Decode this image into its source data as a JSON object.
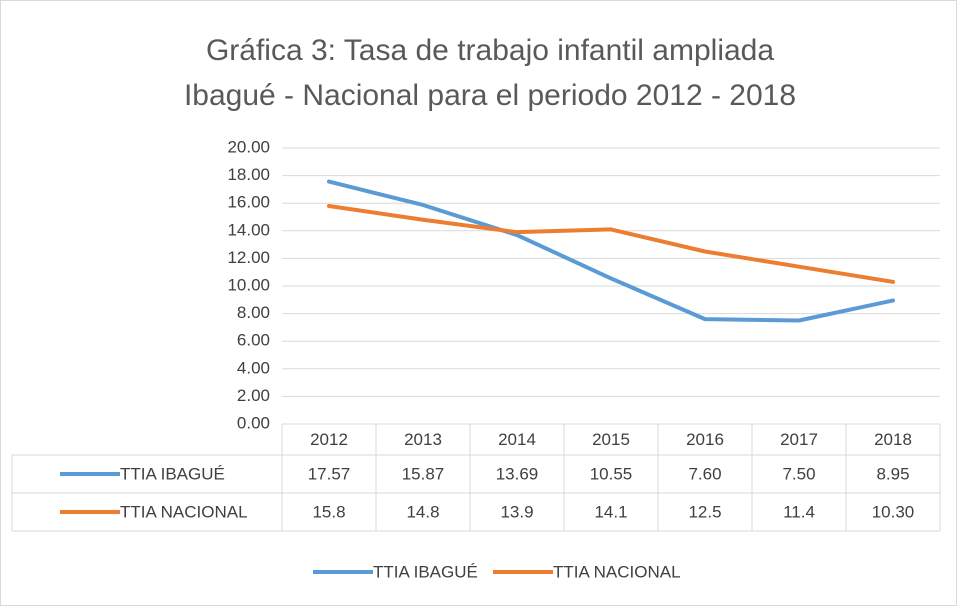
{
  "chart_data": {
    "type": "line",
    "title": [
      "Gráfica 3: Tasa de trabajo infantil ampliada",
      "Ibagué - Nacional para el periodo 2012 - 2018"
    ],
    "categories": [
      "2012",
      "2013",
      "2014",
      "2015",
      "2016",
      "2017",
      "2018"
    ],
    "series": [
      {
        "name": "TTIA IBAGUÉ",
        "color": "#5b9bd5",
        "values": [
          17.57,
          15.87,
          13.69,
          10.55,
          7.6,
          7.5,
          8.95
        ],
        "value_labels": [
          "17.57",
          "15.87",
          "13.69",
          "10.55",
          "7.60",
          "7.50",
          "8.95"
        ]
      },
      {
        "name": "TTIA NACIONAL",
        "color": "#ed7d31",
        "values": [
          15.8,
          14.8,
          13.9,
          14.1,
          12.5,
          11.4,
          10.3
        ],
        "value_labels": [
          "15.8",
          "14.8",
          "13.9",
          "14.1",
          "12.5",
          "11.4",
          "10.30"
        ]
      }
    ],
    "ylim": [
      0,
      20
    ],
    "yticks": [
      {
        "value": 0,
        "label": "0.00"
      },
      {
        "value": 2,
        "label": "2.00"
      },
      {
        "value": 4,
        "label": "4.00"
      },
      {
        "value": 6,
        "label": "6.00"
      },
      {
        "value": 8,
        "label": "8.00"
      },
      {
        "value": 10,
        "label": "10.00"
      },
      {
        "value": 12,
        "label": "12.00"
      },
      {
        "value": 14,
        "label": "14.00"
      },
      {
        "value": 16,
        "label": "16.00"
      },
      {
        "value": 18,
        "label": "18.00"
      },
      {
        "value": 20,
        "label": "20.00"
      }
    ],
    "grid": true,
    "legend": "bottom"
  }
}
